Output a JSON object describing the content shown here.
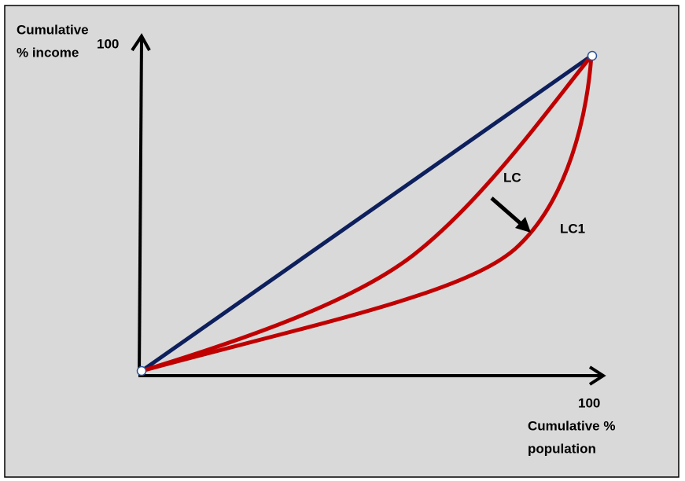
{
  "y_axis": {
    "label_lines": [
      "Cumulative",
      "% income"
    ],
    "max_label": "100"
  },
  "x_axis": {
    "label_lines": [
      "Cumulative %",
      "population"
    ],
    "max_label": "100"
  },
  "curves": [
    {
      "label": "LC"
    },
    {
      "label": "LC1"
    }
  ]
}
